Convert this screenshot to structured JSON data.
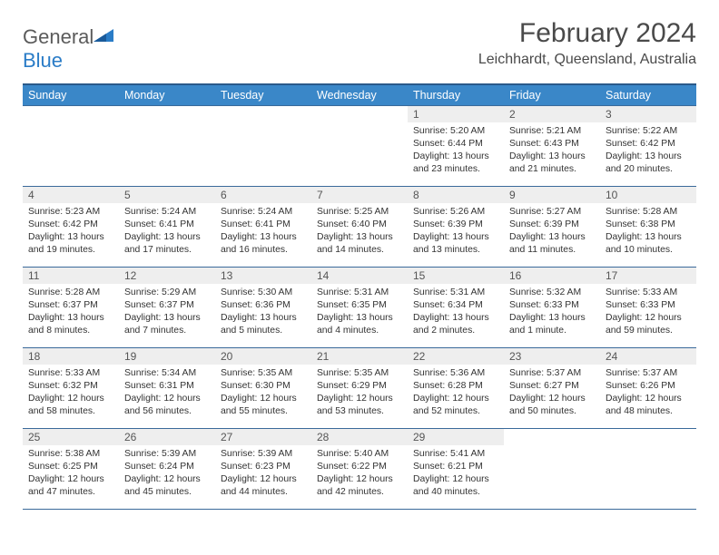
{
  "brand": {
    "name_part1": "General",
    "name_part2": "Blue",
    "color_gray": "#5b5b5b",
    "color_blue": "#2a7cc7"
  },
  "title": "February 2024",
  "location": "Leichhardt, Queensland, Australia",
  "header_bg": "#3a87c8",
  "header_border_top": "#2a5a8a",
  "cell_border": "#3a6a9a",
  "daynum_bg": "#eeeeee",
  "weekdays": [
    "Sunday",
    "Monday",
    "Tuesday",
    "Wednesday",
    "Thursday",
    "Friday",
    "Saturday"
  ],
  "weeks": [
    [
      null,
      null,
      null,
      null,
      {
        "n": "1",
        "sunrise": "5:20 AM",
        "sunset": "6:44 PM",
        "daylight": "13 hours and 23 minutes."
      },
      {
        "n": "2",
        "sunrise": "5:21 AM",
        "sunset": "6:43 PM",
        "daylight": "13 hours and 21 minutes."
      },
      {
        "n": "3",
        "sunrise": "5:22 AM",
        "sunset": "6:42 PM",
        "daylight": "13 hours and 20 minutes."
      }
    ],
    [
      {
        "n": "4",
        "sunrise": "5:23 AM",
        "sunset": "6:42 PM",
        "daylight": "13 hours and 19 minutes."
      },
      {
        "n": "5",
        "sunrise": "5:24 AM",
        "sunset": "6:41 PM",
        "daylight": "13 hours and 17 minutes."
      },
      {
        "n": "6",
        "sunrise": "5:24 AM",
        "sunset": "6:41 PM",
        "daylight": "13 hours and 16 minutes."
      },
      {
        "n": "7",
        "sunrise": "5:25 AM",
        "sunset": "6:40 PM",
        "daylight": "13 hours and 14 minutes."
      },
      {
        "n": "8",
        "sunrise": "5:26 AM",
        "sunset": "6:39 PM",
        "daylight": "13 hours and 13 minutes."
      },
      {
        "n": "9",
        "sunrise": "5:27 AM",
        "sunset": "6:39 PM",
        "daylight": "13 hours and 11 minutes."
      },
      {
        "n": "10",
        "sunrise": "5:28 AM",
        "sunset": "6:38 PM",
        "daylight": "13 hours and 10 minutes."
      }
    ],
    [
      {
        "n": "11",
        "sunrise": "5:28 AM",
        "sunset": "6:37 PM",
        "daylight": "13 hours and 8 minutes."
      },
      {
        "n": "12",
        "sunrise": "5:29 AM",
        "sunset": "6:37 PM",
        "daylight": "13 hours and 7 minutes."
      },
      {
        "n": "13",
        "sunrise": "5:30 AM",
        "sunset": "6:36 PM",
        "daylight": "13 hours and 5 minutes."
      },
      {
        "n": "14",
        "sunrise": "5:31 AM",
        "sunset": "6:35 PM",
        "daylight": "13 hours and 4 minutes."
      },
      {
        "n": "15",
        "sunrise": "5:31 AM",
        "sunset": "6:34 PM",
        "daylight": "13 hours and 2 minutes."
      },
      {
        "n": "16",
        "sunrise": "5:32 AM",
        "sunset": "6:33 PM",
        "daylight": "13 hours and 1 minute."
      },
      {
        "n": "17",
        "sunrise": "5:33 AM",
        "sunset": "6:33 PM",
        "daylight": "12 hours and 59 minutes."
      }
    ],
    [
      {
        "n": "18",
        "sunrise": "5:33 AM",
        "sunset": "6:32 PM",
        "daylight": "12 hours and 58 minutes."
      },
      {
        "n": "19",
        "sunrise": "5:34 AM",
        "sunset": "6:31 PM",
        "daylight": "12 hours and 56 minutes."
      },
      {
        "n": "20",
        "sunrise": "5:35 AM",
        "sunset": "6:30 PM",
        "daylight": "12 hours and 55 minutes."
      },
      {
        "n": "21",
        "sunrise": "5:35 AM",
        "sunset": "6:29 PM",
        "daylight": "12 hours and 53 minutes."
      },
      {
        "n": "22",
        "sunrise": "5:36 AM",
        "sunset": "6:28 PM",
        "daylight": "12 hours and 52 minutes."
      },
      {
        "n": "23",
        "sunrise": "5:37 AM",
        "sunset": "6:27 PM",
        "daylight": "12 hours and 50 minutes."
      },
      {
        "n": "24",
        "sunrise": "5:37 AM",
        "sunset": "6:26 PM",
        "daylight": "12 hours and 48 minutes."
      }
    ],
    [
      {
        "n": "25",
        "sunrise": "5:38 AM",
        "sunset": "6:25 PM",
        "daylight": "12 hours and 47 minutes."
      },
      {
        "n": "26",
        "sunrise": "5:39 AM",
        "sunset": "6:24 PM",
        "daylight": "12 hours and 45 minutes."
      },
      {
        "n": "27",
        "sunrise": "5:39 AM",
        "sunset": "6:23 PM",
        "daylight": "12 hours and 44 minutes."
      },
      {
        "n": "28",
        "sunrise": "5:40 AM",
        "sunset": "6:22 PM",
        "daylight": "12 hours and 42 minutes."
      },
      {
        "n": "29",
        "sunrise": "5:41 AM",
        "sunset": "6:21 PM",
        "daylight": "12 hours and 40 minutes."
      },
      null,
      null
    ]
  ],
  "labels": {
    "sunrise": "Sunrise:",
    "sunset": "Sunset:",
    "daylight": "Daylight:"
  }
}
